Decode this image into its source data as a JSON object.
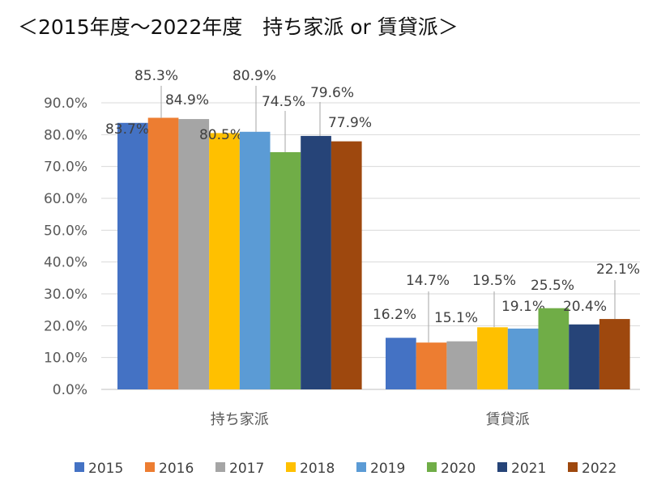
{
  "chart_data": {
    "type": "bar",
    "title": "＜2015年度～2022年度　持ち家派 or 賃貸派＞",
    "xlabel": "",
    "ylabel": "",
    "categories": [
      "持ち家派",
      "賃貸派"
    ],
    "ylim": [
      0,
      90
    ],
    "yticks": [
      "0.0%",
      "10.0%",
      "20.0%",
      "30.0%",
      "40.0%",
      "50.0%",
      "60.0%",
      "70.0%",
      "80.0%",
      "90.0%"
    ],
    "grid": true,
    "legend_position": "bottom",
    "series": [
      {
        "name": "2015",
        "color": "#4472C4",
        "values": [
          83.7,
          16.2
        ],
        "labels": [
          "83.7%",
          "16.2%"
        ]
      },
      {
        "name": "2016",
        "color": "#ED7D31",
        "values": [
          85.3,
          14.7
        ],
        "labels": [
          "85.3%",
          "14.7%"
        ]
      },
      {
        "name": "2017",
        "color": "#A5A5A5",
        "values": [
          84.9,
          15.1
        ],
        "labels": [
          "84.9%",
          "15.1%"
        ]
      },
      {
        "name": "2018",
        "color": "#FFC000",
        "values": [
          80.5,
          19.5
        ],
        "labels": [
          "80.5%",
          "19.5%"
        ]
      },
      {
        "name": "2019",
        "color": "#5B9BD5",
        "values": [
          80.9,
          19.1
        ],
        "labels": [
          "80.9%",
          "19.1%"
        ]
      },
      {
        "name": "2020",
        "color": "#70AD47",
        "values": [
          74.5,
          25.5
        ],
        "labels": [
          "74.5%",
          "25.5%"
        ]
      },
      {
        "name": "2021",
        "color": "#264478",
        "values": [
          79.6,
          20.4
        ],
        "labels": [
          "79.6%",
          "20.4%"
        ]
      },
      {
        "name": "2022",
        "color": "#9E480E",
        "values": [
          77.9,
          22.1
        ],
        "labels": [
          "77.9%",
          "22.1%"
        ]
      }
    ]
  }
}
